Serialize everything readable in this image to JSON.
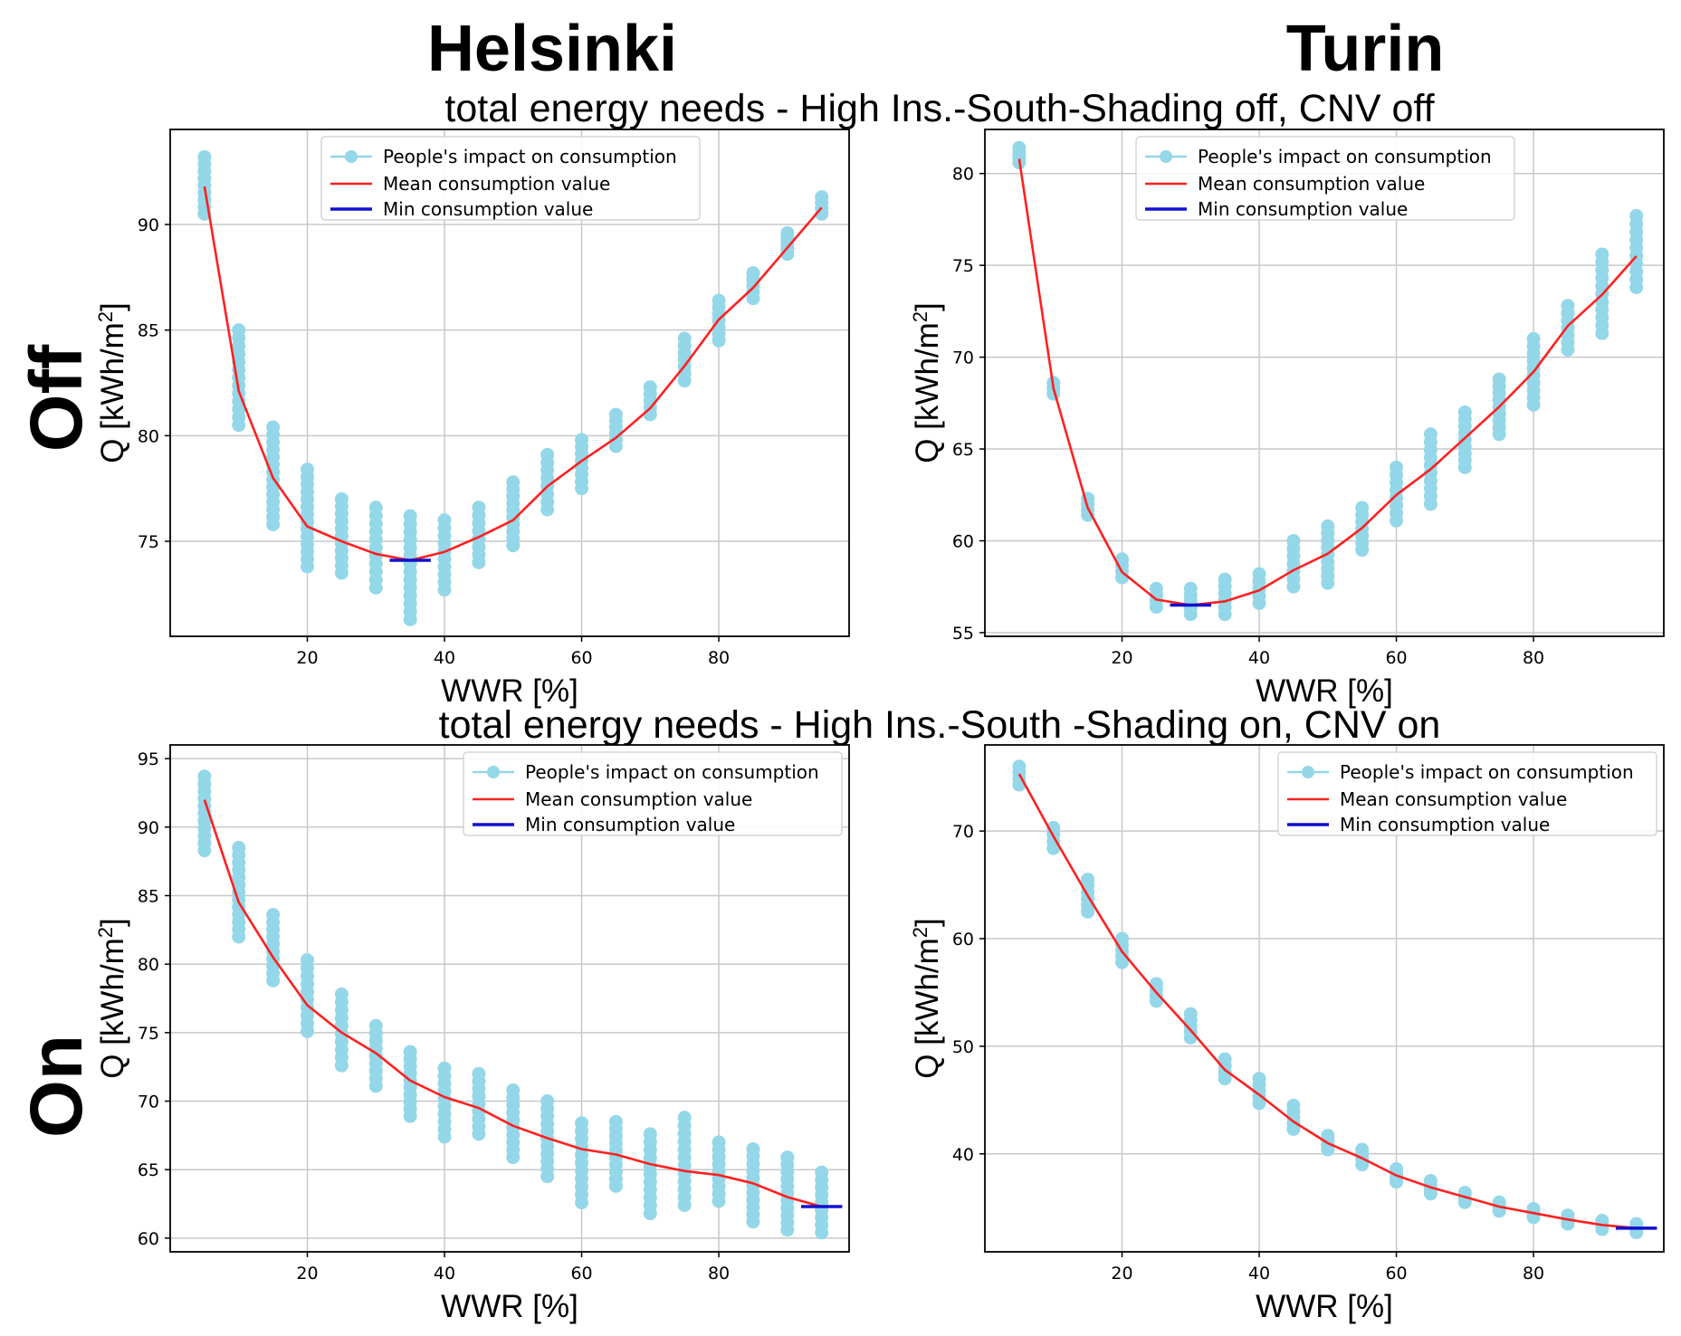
{
  "figure": {
    "cities": [
      "Helsinki",
      "Turin"
    ],
    "row_labels": [
      "Off",
      "On"
    ],
    "suptitles": [
      "total energy needs - High Ins.-South-Shading off, CNV off",
      "total energy needs - High Ins.-South -Shading on, CNV on"
    ]
  },
  "colors": {
    "scatter": "#94d7e8",
    "mean": "#ff2020",
    "min": "#1010d0",
    "grid": "#c8c8c8",
    "axes": "#000000"
  },
  "chart_data": [
    {
      "type": "scatter",
      "title": "Helsinki - Off",
      "xlabel": "WWR [%]",
      "ylabel": "Q [kWh/m2]",
      "xlim": [
        0,
        99
      ],
      "ylim": [
        70.5,
        94.5
      ],
      "xticks": [
        20,
        40,
        60,
        80
      ],
      "yticks": [
        75,
        80,
        85,
        90
      ],
      "grid": true,
      "legend_position": "top-center",
      "legend": [
        "People's impact on consumption",
        "Mean consumption value",
        "Min consumption value"
      ],
      "x": [
        5,
        10,
        15,
        20,
        25,
        30,
        35,
        40,
        45,
        50,
        55,
        60,
        65,
        70,
        75,
        80,
        85,
        90,
        95
      ],
      "mean": [
        91.8,
        82.1,
        78.0,
        75.7,
        75.0,
        74.4,
        74.1,
        74.5,
        75.2,
        76.0,
        77.6,
        78.8,
        79.9,
        81.3,
        83.3,
        85.5,
        87.0,
        88.9,
        90.8
      ],
      "spread": [
        [
          90.5,
          93.2
        ],
        [
          80.5,
          85.0
        ],
        [
          75.8,
          80.4
        ],
        [
          73.8,
          78.4
        ],
        [
          73.5,
          77.0
        ],
        [
          72.8,
          76.6
        ],
        [
          71.3,
          76.2
        ],
        [
          72.7,
          76.0
        ],
        [
          74.0,
          76.6
        ],
        [
          74.8,
          77.8
        ],
        [
          76.5,
          79.1
        ],
        [
          77.5,
          79.8
        ],
        [
          79.5,
          81.0
        ],
        [
          81.0,
          82.3
        ],
        [
          82.6,
          84.6
        ],
        [
          84.5,
          86.4
        ],
        [
          86.5,
          87.7
        ],
        [
          88.6,
          89.6
        ],
        [
          90.5,
          91.3
        ]
      ],
      "min": {
        "x_range": [
          32,
          38
        ],
        "value": 74.1
      }
    },
    {
      "type": "scatter",
      "title": "Turin - Off",
      "xlabel": "WWR [%]",
      "ylabel": "Q [kWh/m2]",
      "xlim": [
        0,
        99
      ],
      "ylim": [
        54.8,
        82.4
      ],
      "xticks": [
        20,
        40,
        60,
        80
      ],
      "yticks": [
        55,
        60,
        65,
        70,
        75,
        80
      ],
      "grid": true,
      "legend_position": "top-center",
      "legend": [
        "People's impact on consumption",
        "Mean consumption value",
        "Min consumption value"
      ],
      "x": [
        5,
        10,
        15,
        20,
        25,
        30,
        35,
        40,
        45,
        50,
        55,
        60,
        65,
        70,
        75,
        80,
        85,
        90,
        95
      ],
      "mean": [
        80.8,
        68.3,
        61.8,
        58.3,
        56.8,
        56.5,
        56.7,
        57.3,
        58.4,
        59.3,
        60.7,
        62.5,
        63.9,
        65.6,
        67.3,
        69.2,
        71.7,
        73.4,
        75.5
      ],
      "spread": [
        [
          80.6,
          81.4
        ],
        [
          68.0,
          68.6
        ],
        [
          61.4,
          62.3
        ],
        [
          58.0,
          59.0
        ],
        [
          56.4,
          57.4
        ],
        [
          56.0,
          57.4
        ],
        [
          56.0,
          57.9
        ],
        [
          56.6,
          58.2
        ],
        [
          57.5,
          60.0
        ],
        [
          57.7,
          60.8
        ],
        [
          59.5,
          61.8
        ],
        [
          61.1,
          64.0
        ],
        [
          62.0,
          65.8
        ],
        [
          64.0,
          67.0
        ],
        [
          65.8,
          68.8
        ],
        [
          67.4,
          71.0
        ],
        [
          70.4,
          72.8
        ],
        [
          71.3,
          75.6
        ],
        [
          73.8,
          77.7
        ]
      ],
      "min": {
        "x_range": [
          27,
          33
        ],
        "value": 56.5
      }
    },
    {
      "type": "scatter",
      "title": "Helsinki - On",
      "xlabel": "WWR [%]",
      "ylabel": "Q [kWh/m2]",
      "xlim": [
        0,
        99
      ],
      "ylim": [
        59.0,
        96.0
      ],
      "xticks": [
        20,
        40,
        60,
        80
      ],
      "yticks": [
        60,
        65,
        70,
        75,
        80,
        85,
        90,
        95
      ],
      "grid": true,
      "legend_position": "top-right",
      "legend": [
        "People's impact on consumption",
        "Mean consumption value",
        "Min consumption value"
      ],
      "x": [
        5,
        10,
        15,
        20,
        25,
        30,
        35,
        40,
        45,
        50,
        55,
        60,
        65,
        70,
        75,
        80,
        85,
        90,
        95
      ],
      "mean": [
        92.0,
        84.5,
        80.5,
        77.0,
        75.0,
        73.5,
        71.5,
        70.3,
        69.5,
        68.2,
        67.3,
        66.5,
        66.1,
        65.4,
        64.9,
        64.6,
        64.0,
        63.0,
        62.3
      ],
      "spread": [
        [
          88.3,
          93.7
        ],
        [
          82.0,
          88.5
        ],
        [
          78.8,
          83.6
        ],
        [
          75.1,
          80.3
        ],
        [
          72.6,
          77.8
        ],
        [
          71.1,
          75.5
        ],
        [
          68.9,
          73.6
        ],
        [
          67.4,
          72.4
        ],
        [
          67.6,
          72.0
        ],
        [
          65.9,
          70.8
        ],
        [
          64.5,
          70.0
        ],
        [
          62.6,
          68.4
        ],
        [
          63.8,
          68.5
        ],
        [
          61.8,
          67.6
        ],
        [
          62.4,
          68.8
        ],
        [
          62.7,
          67.0
        ],
        [
          61.2,
          66.5
        ],
        [
          60.6,
          65.9
        ],
        [
          60.4,
          64.8
        ]
      ],
      "min": {
        "x_range": [
          92,
          98
        ],
        "value": 62.3
      }
    },
    {
      "type": "scatter",
      "title": "Turin - On",
      "xlabel": "WWR [%]",
      "ylabel": "Q [kWh/m2]",
      "xlim": [
        0,
        99
      ],
      "ylim": [
        30.9,
        78.0
      ],
      "xticks": [
        20,
        40,
        60,
        80
      ],
      "yticks": [
        40,
        50,
        60,
        70
      ],
      "grid": true,
      "legend_position": "top-right",
      "legend": [
        "People's impact on consumption",
        "Mean consumption value",
        "Min consumption value"
      ],
      "x": [
        5,
        10,
        15,
        20,
        25,
        30,
        35,
        40,
        45,
        50,
        55,
        60,
        65,
        70,
        75,
        80,
        85,
        90,
        95
      ],
      "mean": [
        75.3,
        69.5,
        64.0,
        58.8,
        55.0,
        51.5,
        47.8,
        45.5,
        43.0,
        41.0,
        39.6,
        38.0,
        36.9,
        36.0,
        35.1,
        34.5,
        33.9,
        33.4,
        33.1
      ],
      "spread": [
        [
          74.3,
          76.0
        ],
        [
          68.4,
          70.3
        ],
        [
          62.5,
          65.5
        ],
        [
          57.8,
          60.0
        ],
        [
          54.2,
          55.8
        ],
        [
          50.8,
          53.0
        ],
        [
          47.0,
          48.8
        ],
        [
          44.7,
          47.0
        ],
        [
          42.3,
          44.5
        ],
        [
          40.4,
          41.7
        ],
        [
          39.0,
          40.4
        ],
        [
          37.4,
          38.6
        ],
        [
          36.3,
          37.5
        ],
        [
          35.5,
          36.4
        ],
        [
          34.7,
          35.5
        ],
        [
          34.1,
          34.9
        ],
        [
          33.5,
          34.3
        ],
        [
          33.0,
          33.8
        ],
        [
          32.7,
          33.5
        ]
      ],
      "min": {
        "x_range": [
          92,
          98
        ],
        "value": 33.1
      }
    }
  ]
}
